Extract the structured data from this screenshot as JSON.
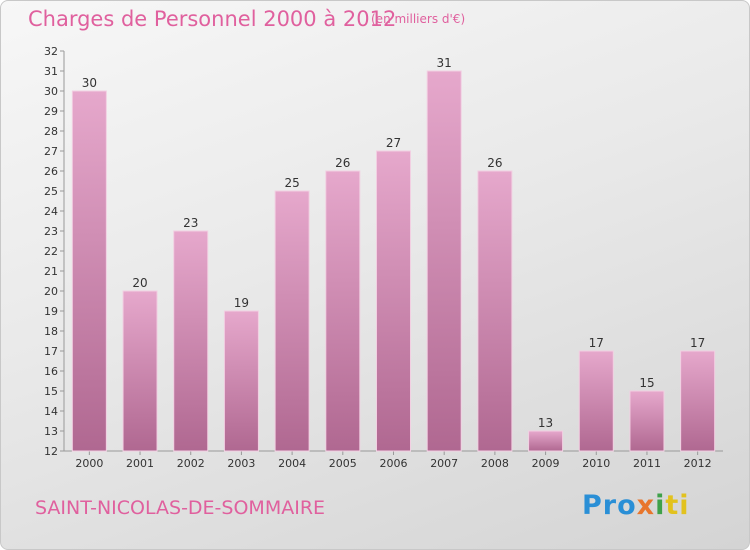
{
  "header": {
    "title": "Charges de Personnel 2000 à 2012",
    "subtitle": "(en milliers d'€)"
  },
  "footer": {
    "commune": "SAINT-NICOLAS-DE-SOMMAIRE",
    "logo_parts": [
      "Pro",
      "x",
      "i",
      "ti"
    ]
  },
  "colors": {
    "bar_light": "#e6a8cc",
    "bar_dark": "#b06891",
    "text_accent": "#e0609e"
  },
  "chart_data": {
    "type": "bar",
    "title": "Charges de Personnel 2000 à 2012",
    "subtitle": "(en milliers d'€)",
    "categories": [
      "2000",
      "2001",
      "2002",
      "2003",
      "2004",
      "2005",
      "2006",
      "2007",
      "2008",
      "2009",
      "2010",
      "2011",
      "2012"
    ],
    "values": [
      30,
      20,
      23,
      19,
      25,
      26,
      27,
      31,
      26,
      13,
      17,
      15,
      17
    ],
    "ylim": [
      12,
      32
    ],
    "yticks": [
      12,
      13,
      14,
      15,
      16,
      17,
      18,
      19,
      20,
      21,
      22,
      23,
      24,
      25,
      26,
      27,
      28,
      29,
      30,
      31,
      32
    ],
    "grid": false,
    "legend": "none"
  }
}
